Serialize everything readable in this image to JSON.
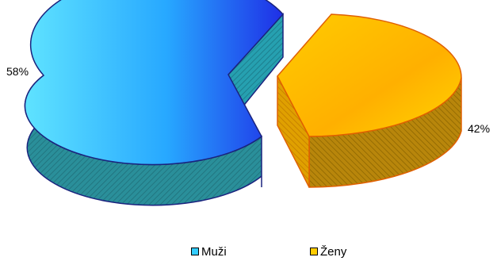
{
  "chart_data": {
    "type": "pie",
    "title": "",
    "categories": [
      "Muži",
      "Ženy"
    ],
    "values": [
      58,
      42
    ],
    "labels": [
      "58%",
      "42%"
    ],
    "legend_position": "bottom",
    "exploded": true,
    "three_d": true
  },
  "legend": [
    {
      "label": "Muži",
      "color": "#33ccff"
    },
    {
      "label": "Ženy",
      "color": "#ffcc00"
    }
  ],
  "colors": {
    "muzi_top_light": "#5fe3ff",
    "muzi_top_dark": "#1f2fe6",
    "muzi_side": "#2a8f9a",
    "muzi_outline": "#1a237e",
    "zeny_top_light": "#ffb300",
    "zeny_top_dark": "#ffd000",
    "zeny_side": "#b8860b",
    "zeny_outline": "#e06000"
  }
}
